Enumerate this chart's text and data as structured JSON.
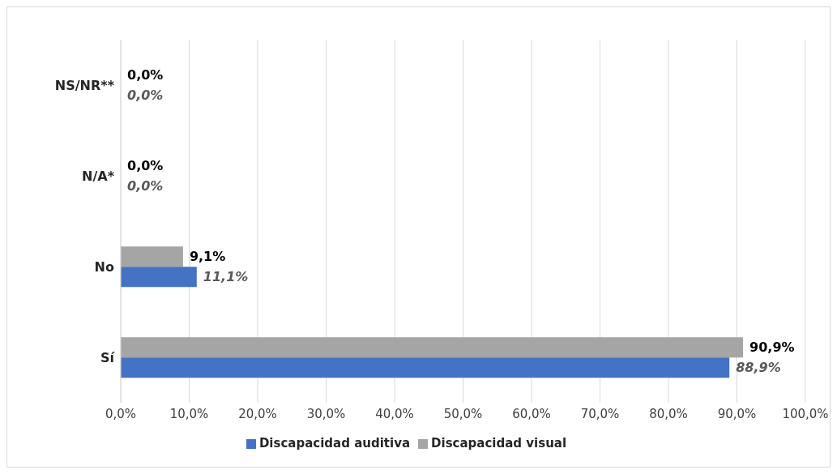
{
  "chart_data": {
    "type": "bar",
    "orientation": "horizontal",
    "categories": [
      "NS/NR**",
      "N/A*",
      "No",
      "Sí"
    ],
    "series": [
      {
        "name": "Discapacidad visual",
        "color": "#a5a5a5",
        "values": [
          0,
          0,
          9.1,
          90.9
        ],
        "value_labels": [
          "0,0%",
          "0,0%",
          "9,1%",
          "90,9%"
        ]
      },
      {
        "name": "Discapacidad auditiva",
        "color": "#4472c4",
        "values": [
          0,
          0,
          11.1,
          88.9
        ],
        "value_labels": [
          "0,0%",
          "0,0%",
          "11,1%",
          "88,9%"
        ]
      }
    ],
    "xlim": [
      0,
      100
    ],
    "xticks": [
      {
        "value": 0,
        "label": "0,0%"
      },
      {
        "value": 10,
        "label": "10,0%"
      },
      {
        "value": 20,
        "label": "20,0%"
      },
      {
        "value": 30,
        "label": "30,0%"
      },
      {
        "value": 40,
        "label": "40,0%"
      },
      {
        "value": 50,
        "label": "50,0%"
      },
      {
        "value": 60,
        "label": "60,0%"
      },
      {
        "value": 70,
        "label": "70,0%"
      },
      {
        "value": 80,
        "label": "80,0%"
      },
      {
        "value": 90,
        "label": "90,0%"
      },
      {
        "value": 100,
        "label": "100,0%"
      }
    ],
    "grid": "x",
    "legend": "bottom"
  }
}
